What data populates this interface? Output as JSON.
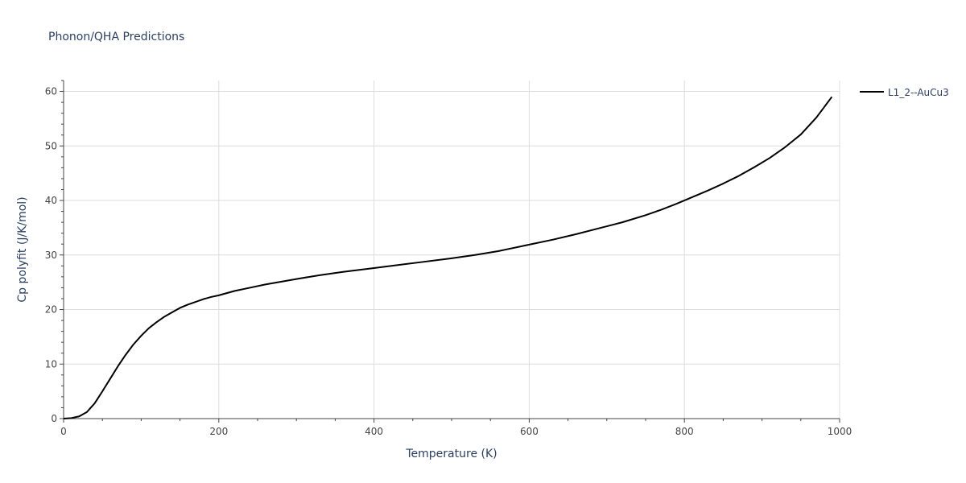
{
  "chart_data": {
    "type": "line",
    "title": "Phonon/QHA Predictions",
    "xlabel": "Temperature (K)",
    "ylabel": "Cp polyfit (J/K/mol)",
    "xlim": [
      0,
      1000
    ],
    "ylim": [
      0,
      62
    ],
    "xticks": [
      0,
      200,
      400,
      600,
      800,
      1000
    ],
    "yticks": [
      0,
      10,
      20,
      30,
      40,
      50,
      60
    ],
    "grid": true,
    "legend_position": "top-right",
    "series": [
      {
        "name": "L1_2--AuCu3",
        "color": "#000000",
        "x": [
          0,
          10,
          20,
          30,
          40,
          50,
          60,
          70,
          80,
          90,
          100,
          110,
          120,
          130,
          140,
          150,
          160,
          170,
          180,
          190,
          200,
          220,
          240,
          260,
          280,
          300,
          330,
          360,
          400,
          450,
          500,
          530,
          560,
          600,
          630,
          660,
          690,
          720,
          750,
          770,
          790,
          810,
          830,
          850,
          870,
          890,
          910,
          930,
          950,
          970,
          990
        ],
        "y": [
          0,
          0.1,
          0.4,
          1.2,
          2.8,
          5.0,
          7.3,
          9.6,
          11.7,
          13.6,
          15.2,
          16.6,
          17.7,
          18.7,
          19.5,
          20.3,
          20.9,
          21.4,
          21.9,
          22.3,
          22.6,
          23.4,
          24.0,
          24.6,
          25.1,
          25.6,
          26.3,
          26.9,
          27.6,
          28.5,
          29.4,
          30.0,
          30.7,
          31.9,
          32.8,
          33.8,
          34.9,
          36.0,
          37.3,
          38.3,
          39.4,
          40.6,
          41.8,
          43.1,
          44.5,
          46.1,
          47.8,
          49.8,
          52.1,
          55.2,
          59.0
        ]
      }
    ]
  }
}
